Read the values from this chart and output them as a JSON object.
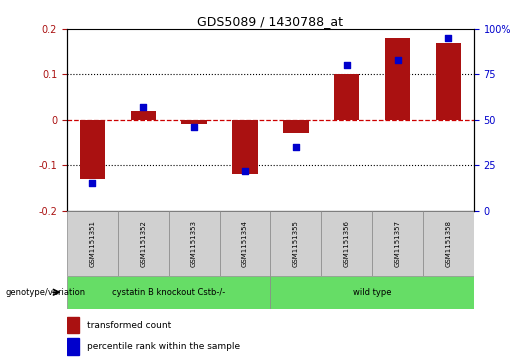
{
  "title": "GDS5089 / 1430788_at",
  "samples": [
    "GSM1151351",
    "GSM1151352",
    "GSM1151353",
    "GSM1151354",
    "GSM1151355",
    "GSM1151356",
    "GSM1151357",
    "GSM1151358"
  ],
  "bar_values": [
    -0.13,
    0.02,
    -0.01,
    -0.12,
    -0.03,
    0.1,
    0.18,
    0.17
  ],
  "dot_values": [
    15,
    57,
    46,
    22,
    35,
    80,
    83,
    95
  ],
  "group1_samples": 4,
  "group1_label": "cystatin B knockout Cstb-/-",
  "group2_label": "wild type",
  "sample_bg_color": "#D0D0D0",
  "group_color": "#66DD66",
  "bar_color": "#AA1111",
  "dot_color": "#0000CC",
  "ylim_left": [
    -0.2,
    0.2
  ],
  "ylim_right": [
    0,
    100
  ],
  "yticks_left": [
    -0.2,
    -0.1,
    0.0,
    0.1,
    0.2
  ],
  "ytick_labels_left": [
    "-0.2",
    "-0.1",
    "0",
    "0.1",
    "0.2"
  ],
  "yticks_right": [
    0,
    25,
    50,
    75,
    100
  ],
  "ytick_labels_right": [
    "0",
    "25",
    "50",
    "75",
    "100%"
  ],
  "legend_red": "transformed count",
  "legend_blue": "percentile rank within the sample",
  "genotype_label": "genotype/variation",
  "zero_line_color": "#CC0000",
  "dotted_line_color": "#000000"
}
